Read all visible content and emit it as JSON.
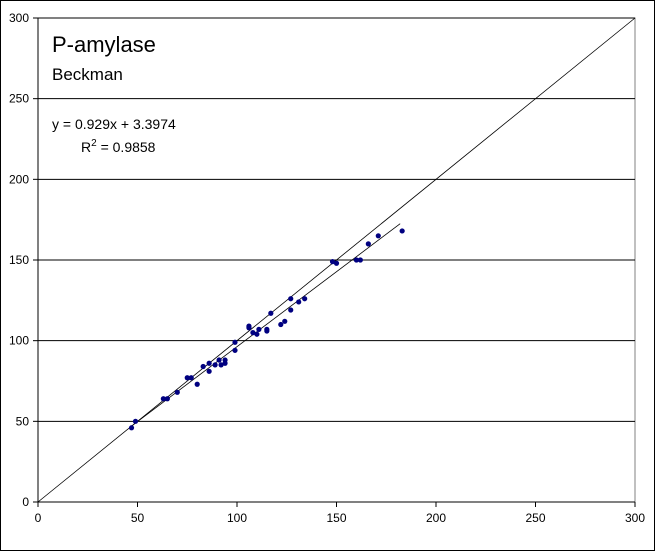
{
  "chart_data": {
    "type": "scatter",
    "title": "P-amylase",
    "subtitle": "Beckman",
    "xlim": [
      0,
      300
    ],
    "ylim": [
      0,
      300
    ],
    "x_ticks": [
      "0",
      "50",
      "100",
      "150",
      "200",
      "250",
      "300"
    ],
    "y_ticks": [
      "0",
      "50",
      "100",
      "150",
      "200",
      "250",
      "300"
    ],
    "grid": "horizontal",
    "equation": "y = 0.929x + 3.3974",
    "r2_label": "R",
    "r2_sup": "2",
    "r2_value": " = 0.9858",
    "trendline": {
      "slope": 0.929,
      "intercept": 3.3974,
      "x_range": [
        47,
        182
      ]
    },
    "identity_line": {
      "from": [
        0,
        0
      ],
      "to": [
        300,
        300
      ]
    },
    "points": [
      [
        47,
        46
      ],
      [
        49,
        50
      ],
      [
        63,
        64
      ],
      [
        65,
        64
      ],
      [
        70,
        68
      ],
      [
        75,
        77
      ],
      [
        77,
        77
      ],
      [
        80,
        73
      ],
      [
        83,
        84
      ],
      [
        86,
        86
      ],
      [
        86,
        81
      ],
      [
        89,
        85
      ],
      [
        91,
        88
      ],
      [
        92,
        85
      ],
      [
        94,
        86
      ],
      [
        94,
        88
      ],
      [
        99,
        99
      ],
      [
        99,
        94
      ],
      [
        106,
        109
      ],
      [
        106,
        108
      ],
      [
        108,
        105
      ],
      [
        110,
        104
      ],
      [
        111,
        107
      ],
      [
        115,
        107
      ],
      [
        115,
        106
      ],
      [
        117,
        117
      ],
      [
        122,
        110
      ],
      [
        124,
        112
      ],
      [
        127,
        119
      ],
      [
        127,
        126
      ],
      [
        131,
        124
      ],
      [
        134,
        126
      ],
      [
        148,
        149
      ],
      [
        150,
        148
      ],
      [
        160,
        150
      ],
      [
        162,
        150
      ],
      [
        166,
        160
      ],
      [
        171,
        165
      ],
      [
        183,
        168
      ]
    ]
  }
}
